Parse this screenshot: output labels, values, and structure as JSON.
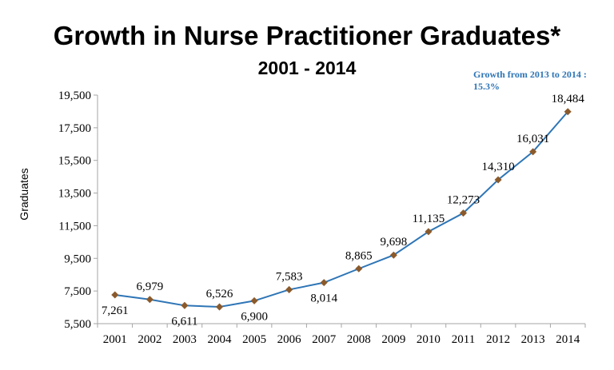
{
  "chart_data": {
    "type": "line",
    "title": "Growth in Nurse Practitioner Graduates*",
    "subtitle": "2001 - 2014",
    "ylabel": "Graduates",
    "annotation": "Growth from 2013 to 2014 : 15.3%",
    "ylim": [
      5500,
      19500
    ],
    "yticks": [
      "5,500",
      "7,500",
      "9,500",
      "11,500",
      "13,500",
      "15,500",
      "17,500",
      "19,500"
    ],
    "ytick_values": [
      5500,
      7500,
      9500,
      11500,
      13500,
      15500,
      17500,
      19500
    ],
    "categories": [
      "2001",
      "2002",
      "2003",
      "2004",
      "2005",
      "2006",
      "2007",
      "2008",
      "2009",
      "2010",
      "2011",
      "2012",
      "2013",
      "2014"
    ],
    "series": [
      {
        "values": [
          7261,
          6979,
          6611,
          6526,
          6900,
          7583,
          8014,
          8865,
          9698,
          11135,
          12273,
          14310,
          16031,
          18484
        ],
        "labels": [
          "7,261",
          "6,979",
          "6,611",
          "6,526",
          "6,900",
          "7,583",
          "8,014",
          "8,865",
          "9,698",
          "11,135",
          "12,273",
          "14,310",
          "16,031",
          "18,484"
        ],
        "label_side": [
          "below",
          "above",
          "below",
          "above",
          "below",
          "above",
          "below",
          "above",
          "above",
          "above",
          "above",
          "above",
          "above",
          "above"
        ],
        "line_color": "#2e75b6",
        "marker_color": "#8b5a2b"
      }
    ],
    "grid": false,
    "axis_color": "#a6a6a6"
  }
}
